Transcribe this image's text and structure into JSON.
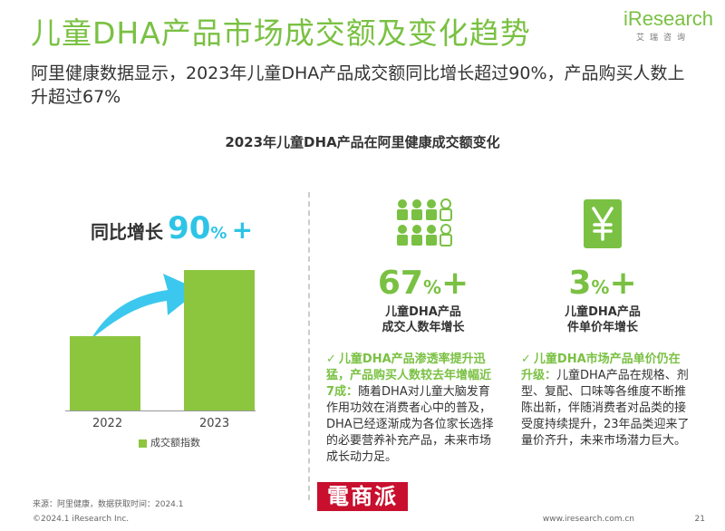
{
  "header": {
    "title": "儿童DHA产品市场成交额及变化趋势",
    "logo_text": "iResearch",
    "logo_sub": "艾瑞咨询",
    "subtitle": "阿里健康数据显示，2023年儿童DHA产品成交额同比增长超过90%，产品购买人数上升超过67%"
  },
  "chart_title": "2023年儿童DHA产品在阿里健康成交额变化",
  "growth": {
    "label": "同比增长",
    "number": "90",
    "unit": "%",
    "plus": "+"
  },
  "chart_data": {
    "type": "bar",
    "categories": [
      "2022",
      "2023"
    ],
    "values": [
      100,
      190
    ],
    "series_name": "成交额指数"
  },
  "stats": [
    {
      "number": "67",
      "unit": "%",
      "plus": "+",
      "label_line1": "儿童DHA产品",
      "label_line2": "成交人数年增长",
      "highlight": "儿童DHA产品渗透率提升迅猛，产品购买人数较去年增幅近7成：",
      "text": "随着DHA对儿童大脑发育作用功效在消费者心中的普及，DHA已经逐渐成为各位家长选择的必要营养补充产品，未来市场成长动力足。",
      "icon": "people-icon"
    },
    {
      "number": "3",
      "unit": "%",
      "plus": "+",
      "label_line1": "儿童DHA产品",
      "label_line2": "件单价年增长",
      "highlight": "儿童DHA市场产品单价仍在升级：",
      "text": "儿童DHA产品在规格、剂型、复配、口味等各维度不断推陈出新，伴随消费者对品类的接受度持续提升，23年品类迎来了量价齐升，未来市场潜力巨大。",
      "icon": "yen-icon"
    }
  ],
  "footer": {
    "source": "来源：阿里健康，数据获取时间：2024.1",
    "copyright": "©2024.1 iResearch Inc.",
    "url": "www.iresearch.com.cn",
    "page": "21",
    "watermark": "電商派"
  },
  "colors": {
    "accent": "#7ac143",
    "bar": "#8cc63f",
    "cyan": "#2ec4e6"
  }
}
